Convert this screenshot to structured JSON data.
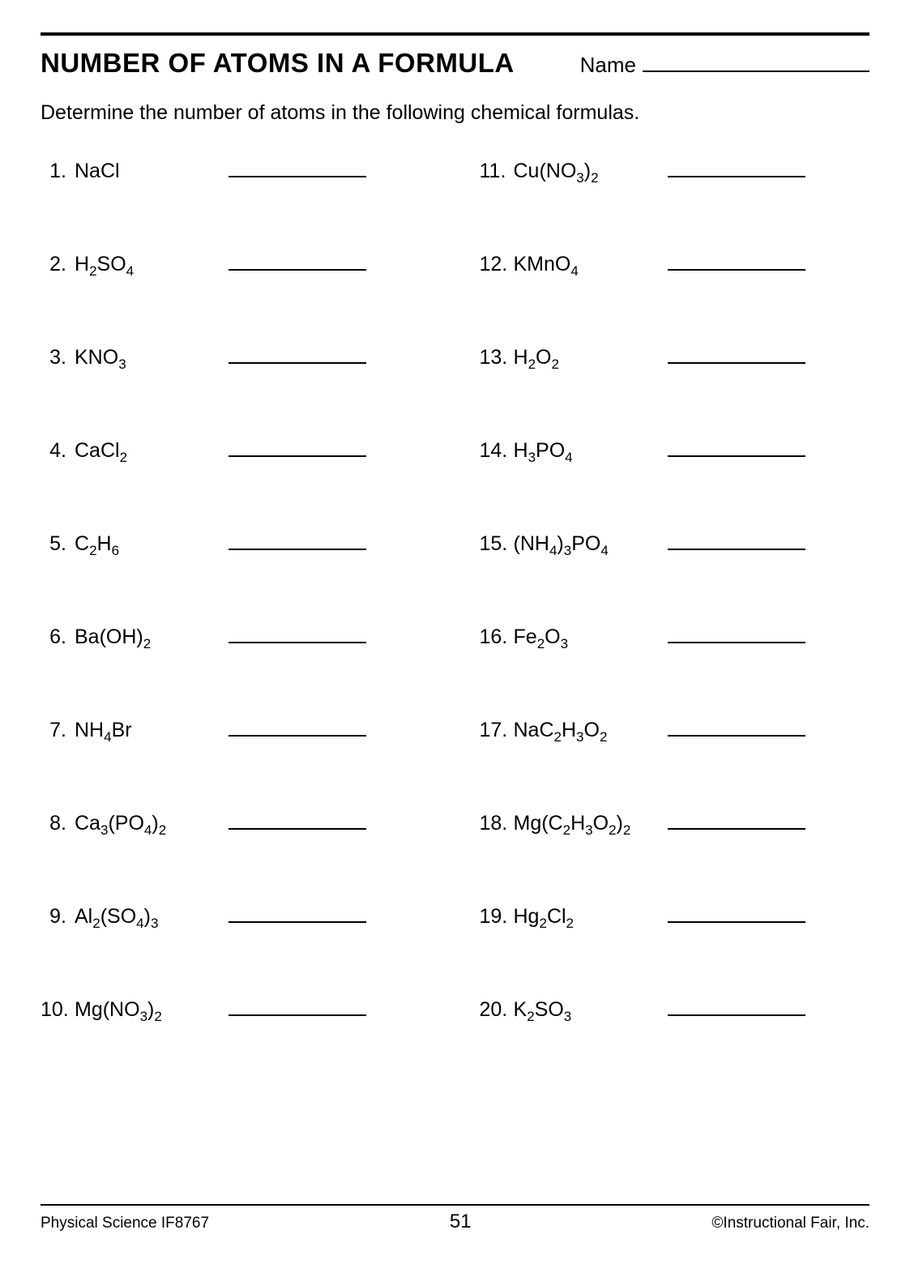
{
  "title": "NUMBER OF ATOMS IN A FORMULA",
  "name_label": "Name",
  "instructions": "Determine the number of atoms in the following chemical formulas.",
  "left_items": [
    {
      "n": "1.",
      "formula": [
        [
          "NaCl",
          ""
        ]
      ]
    },
    {
      "n": "2.",
      "formula": [
        [
          "H",
          "2"
        ],
        [
          "SO",
          "4"
        ]
      ]
    },
    {
      "n": "3.",
      "formula": [
        [
          "KNO",
          "3"
        ]
      ]
    },
    {
      "n": "4.",
      "formula": [
        [
          "CaCl",
          "2"
        ]
      ]
    },
    {
      "n": "5.",
      "formula": [
        [
          "C",
          "2"
        ],
        [
          "H",
          "6"
        ]
      ]
    },
    {
      "n": "6.",
      "formula": [
        [
          "Ba(OH)",
          "2"
        ]
      ]
    },
    {
      "n": "7.",
      "formula": [
        [
          "NH",
          "4"
        ],
        [
          "Br",
          ""
        ]
      ]
    },
    {
      "n": "8.",
      "formula": [
        [
          "Ca",
          "3"
        ],
        [
          "(PO",
          "4"
        ],
        [
          ")",
          "2"
        ]
      ]
    },
    {
      "n": "9.",
      "formula": [
        [
          "Al",
          "2"
        ],
        [
          "(SO",
          "4"
        ],
        [
          ")",
          "3"
        ]
      ]
    },
    {
      "n": "10.",
      "formula": [
        [
          "Mg(NO",
          "3"
        ],
        [
          ")",
          "2"
        ]
      ]
    }
  ],
  "right_items": [
    {
      "n": "11.",
      "formula": [
        [
          "Cu(NO",
          "3"
        ],
        [
          ")",
          "2"
        ]
      ]
    },
    {
      "n": "12.",
      "formula": [
        [
          "KMnO",
          "4"
        ]
      ]
    },
    {
      "n": "13.",
      "formula": [
        [
          "H",
          "2"
        ],
        [
          "O",
          "2"
        ]
      ]
    },
    {
      "n": "14.",
      "formula": [
        [
          "H",
          "3"
        ],
        [
          "PO",
          "4"
        ]
      ]
    },
    {
      "n": "15.",
      "formula": [
        [
          "(NH",
          "4"
        ],
        [
          ")",
          "3"
        ],
        [
          "PO",
          "4"
        ]
      ]
    },
    {
      "n": "16.",
      "formula": [
        [
          "Fe",
          "2"
        ],
        [
          "O",
          "3"
        ]
      ]
    },
    {
      "n": "17.",
      "formula": [
        [
          "NaC",
          "2"
        ],
        [
          "H",
          "3"
        ],
        [
          "O",
          "2"
        ]
      ]
    },
    {
      "n": "18.",
      "formula": [
        [
          "Mg(C",
          "2"
        ],
        [
          "H",
          "3"
        ],
        [
          "O",
          "2"
        ],
        [
          ")",
          "2"
        ]
      ]
    },
    {
      "n": "19.",
      "formula": [
        [
          "Hg",
          "2"
        ],
        [
          "Cl",
          "2"
        ]
      ]
    },
    {
      "n": "20.",
      "formula": [
        [
          "K",
          "2"
        ],
        [
          "SO",
          "3"
        ]
      ]
    }
  ],
  "footer_left": "Physical Science IF8767",
  "page_number": "51",
  "footer_right": "©Instructional Fair, Inc."
}
